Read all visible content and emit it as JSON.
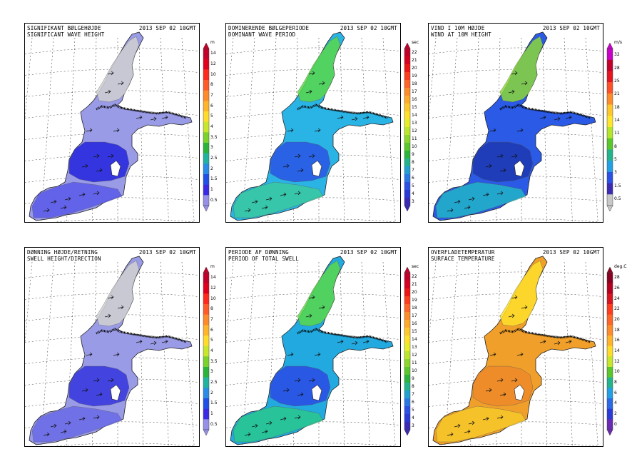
{
  "panels": [
    {
      "id": "swh",
      "title_line1": "SIGNIFIKANT BØLGEHØJDE",
      "title_line2": "SIGNIFICANT WAVE HEIGHT",
      "date": "2013 SEP 02 10GMT",
      "unit": "m",
      "ticks": [
        "14",
        "12",
        "10",
        "8",
        "7",
        "6",
        "5",
        "4",
        "3.5",
        "3",
        "2.5",
        "2",
        "1.5",
        "1",
        "0.5"
      ],
      "colors": [
        "#c2002a",
        "#e0001e",
        "#ff2a1e",
        "#ff5a28",
        "#ff8a2a",
        "#ffb42a",
        "#ffdc2a",
        "#c8e62a",
        "#7ad22a",
        "#2ab43c",
        "#20b4a0",
        "#2a8ce6",
        "#2050e6",
        "#3a2ae6",
        "#9690e8"
      ],
      "field": {
        "main": "#9a9be6",
        "deep": "#2a2ade",
        "mid": "#5a5aea",
        "light": "#d0d0d0"
      }
    },
    {
      "id": "dwp",
      "title_line1": "DOMINERENDE BØLGEPERIODE",
      "title_line2": "DOMINANT WAVE PERIOD",
      "date": "2013 SEP 02 10GMT",
      "unit": "sec",
      "ticks": [
        "22",
        "21",
        "20",
        "19",
        "18",
        "17",
        "16",
        "15",
        "14",
        "13",
        "12",
        "11",
        "10",
        "9",
        "8",
        "7",
        "6",
        "5",
        "4",
        "3"
      ],
      "colors": [
        "#c2002a",
        "#d8001e",
        "#ee1414",
        "#ff3c1e",
        "#ff6428",
        "#ff8c2a",
        "#ffaa2a",
        "#ffc82a",
        "#ffe02a",
        "#e6ee2a",
        "#bce62a",
        "#8cd82a",
        "#5ac82a",
        "#2ab43c",
        "#22b48c",
        "#22a0d0",
        "#2a78e6",
        "#2a50e6",
        "#2a3ad8",
        "#3a2ab4"
      ],
      "field": {
        "main": "#2ab4e6",
        "deep": "#2a5ae6",
        "mid": "#3acaa0",
        "light": "#5ad84a"
      }
    },
    {
      "id": "wind",
      "title_line1": "VIND I 10M HØJDE",
      "title_line2": "WIND AT 10M HEIGHT",
      "date": "2013 SEP 02 10GMT",
      "unit": "m/s",
      "ticks": [
        "32",
        "28",
        "25",
        "21",
        "18",
        "14",
        "11",
        "8",
        "5",
        "3",
        "1.5",
        "0.5"
      ],
      "colors": [
        "#c800c8",
        "#c2002a",
        "#e6141e",
        "#ff5028",
        "#ff8c2a",
        "#ffc82a",
        "#ffe62a",
        "#b4e62a",
        "#5ac82a",
        "#22b48c",
        "#22a0e6",
        "#2a50e6",
        "#3a2ab4",
        "#c8c8c8"
      ],
      "field": {
        "main": "#2a5ae6",
        "deep": "#1e3ab4",
        "mid": "#22b4c8",
        "light": "#8cd83a"
      }
    },
    {
      "id": "swell",
      "title_line1": "DØNNING HØJDE/RETNING",
      "title_line2": "SWELL HEIGHT/DIRECTION",
      "date": "2013 SEP 02 10GMT",
      "unit": "m",
      "ticks": [
        "14",
        "12",
        "10",
        "8",
        "7",
        "6",
        "5",
        "4",
        "3.5",
        "3",
        "2.5",
        "2",
        "1.5",
        "1",
        "0.5"
      ],
      "colors": [
        "#c2002a",
        "#e0001e",
        "#ff2a1e",
        "#ff5a28",
        "#ff8a2a",
        "#ffb42a",
        "#ffdc2a",
        "#c8e62a",
        "#7ad22a",
        "#2ab43c",
        "#20b4a0",
        "#2a8ce6",
        "#2050e6",
        "#3a2ae6",
        "#9690e8"
      ],
      "field": {
        "main": "#9a9be6",
        "deep": "#3a3ae0",
        "mid": "#6a6ae8",
        "light": "#d2d2d2"
      }
    },
    {
      "id": "swellp",
      "title_line1": "PERIODE AF DØNNING",
      "title_line2": "PERIOD OF TOTAL SWELL",
      "date": "2013 SEP 02 10GMT",
      "unit": "sec",
      "ticks": [
        "22",
        "21",
        "20",
        "19",
        "18",
        "17",
        "16",
        "15",
        "14",
        "13",
        "12",
        "11",
        "10",
        "9",
        "8",
        "7",
        "6",
        "5",
        "4",
        "3"
      ],
      "colors": [
        "#c2002a",
        "#d8001e",
        "#ee1414",
        "#ff3c1e",
        "#ff6428",
        "#ff8c2a",
        "#ffaa2a",
        "#ffc82a",
        "#ffe02a",
        "#e6ee2a",
        "#bce62a",
        "#8cd82a",
        "#5ac82a",
        "#2ab43c",
        "#22b48c",
        "#22a0d0",
        "#2a78e6",
        "#2a50e6",
        "#2a3ad8",
        "#3a2ab4"
      ],
      "field": {
        "main": "#22aae0",
        "deep": "#2a50e6",
        "mid": "#2ac88c",
        "light": "#5ad84a"
      }
    },
    {
      "id": "sst",
      "title_line1": "OVERFLADETEMPERATUR",
      "title_line2": "SURFACE TEMPERATURE",
      "date": "2013 SEP 02 10GMT",
      "unit": "deg.C",
      "ticks": [
        "28",
        "26",
        "24",
        "22",
        "20",
        "18",
        "16",
        "14",
        "12",
        "10",
        "8",
        "6",
        "4",
        "2",
        "0"
      ],
      "colors": [
        "#8a0020",
        "#b4001e",
        "#d8141e",
        "#ff3c1e",
        "#ff6428",
        "#ff8c2a",
        "#ffb42a",
        "#ffdc2a",
        "#c8e62a",
        "#5ac82a",
        "#22b48c",
        "#22a0e6",
        "#2a6ae6",
        "#2a3ad8",
        "#6a2ab4"
      ],
      "field": {
        "main": "#f0a02a",
        "deep": "#ee8a2a",
        "mid": "#f6c82a",
        "light": "#ffe02a"
      }
    }
  ]
}
